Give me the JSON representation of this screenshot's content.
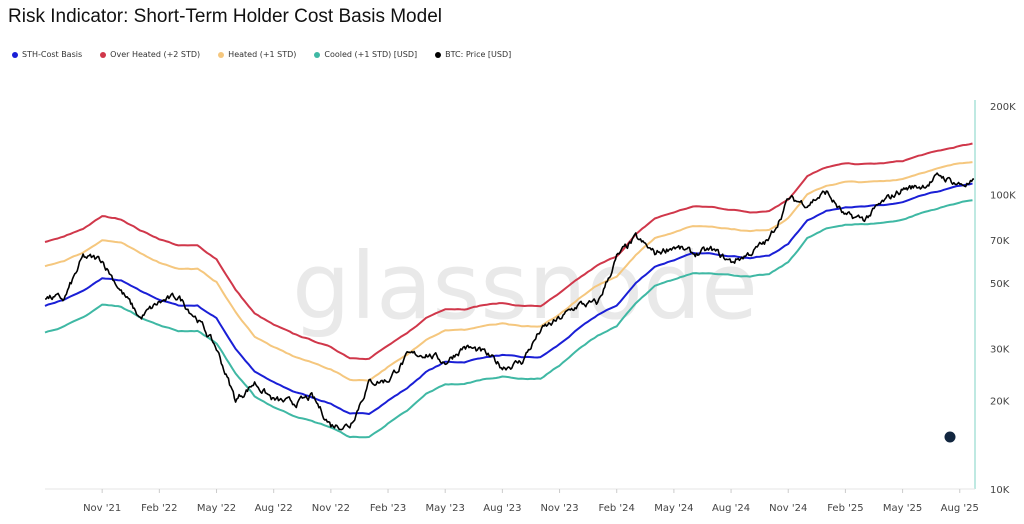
{
  "chart_data": {
    "type": "line",
    "title": "Risk Indicator: Short-Term Holder Cost Basis Model",
    "watermark": "glassnode",
    "y_scale": "log",
    "ylim": [
      10000,
      200000
    ],
    "y_ticks": [
      {
        "v": 200000,
        "label": "200K"
      },
      {
        "v": 100000,
        "label": "100K"
      },
      {
        "v": 70000,
        "label": "70K"
      },
      {
        "v": 50000,
        "label": "50K"
      },
      {
        "v": 30000,
        "label": "30K"
      },
      {
        "v": 20000,
        "label": "20K"
      },
      {
        "v": 10000,
        "label": "10K"
      }
    ],
    "x_unit": "month index (0 = Aug 2021)",
    "xlim": [
      0,
      48.8
    ],
    "x_ticks": [
      {
        "v": 3,
        "label": "Nov '21"
      },
      {
        "v": 6,
        "label": "Feb '22"
      },
      {
        "v": 9,
        "label": "May '22"
      },
      {
        "v": 12,
        "label": "Aug '22"
      },
      {
        "v": 15,
        "label": "Nov '22"
      },
      {
        "v": 18,
        "label": "Feb '23"
      },
      {
        "v": 21,
        "label": "May '23"
      },
      {
        "v": 24,
        "label": "Aug '23"
      },
      {
        "v": 27,
        "label": "Nov '23"
      },
      {
        "v": 30,
        "label": "Feb '24"
      },
      {
        "v": 33,
        "label": "May '24"
      },
      {
        "v": 36,
        "label": "Aug '24"
      },
      {
        "v": 39,
        "label": "Nov '24"
      },
      {
        "v": 42,
        "label": "Feb '25"
      },
      {
        "v": 45,
        "label": "May '25"
      },
      {
        "v": 48,
        "label": "Aug '25"
      }
    ],
    "legend_position": "top-left",
    "series": [
      {
        "name": "STH-Cost Basis",
        "color": "#1a1fd6",
        "width": 2,
        "values_k": [
          42,
          44,
          47,
          52,
          51,
          47,
          44,
          42,
          42,
          38,
          30,
          25,
          23,
          21.5,
          20.5,
          19.5,
          18,
          18,
          20,
          22,
          25,
          27,
          27,
          28,
          28.5,
          28,
          28,
          31,
          35,
          39,
          42,
          50,
          57,
          60,
          63,
          63,
          62,
          61,
          62,
          68,
          82,
          88,
          91,
          91,
          92,
          94,
          99,
          103,
          107,
          110
        ]
      },
      {
        "name": "Over Heated (+2 STD)",
        "color": "#d0374a",
        "width": 2,
        "values_k": [
          68.9,
          71.9,
          76.6,
          84.4,
          82.5,
          75.7,
          70.7,
          67.2,
          67.0,
          60.4,
          47.5,
          39.4,
          36.1,
          33.7,
          32.0,
          30.3,
          27.9,
          27.8,
          30.7,
          33.7,
          38.1,
          41.0,
          40.9,
          42.2,
          42.8,
          41.9,
          41.8,
          46.1,
          51.8,
          57.5,
          61.7,
          73.1,
          83.0,
          87.1,
          91.1,
          90.7,
          88.9,
          87.2,
          88.2,
          96.4,
          115.7,
          123.7,
          127.4,
          126.9,
          127.8,
          130.0,
          136.3,
          141.2,
          146.2,
          149.6
        ]
      },
      {
        "name": "Heated (+1 STD)",
        "color": "#f5c77e",
        "width": 2,
        "values_k": [
          57.1,
          59.7,
          63.6,
          70.2,
          68.6,
          63.1,
          58.9,
          56.1,
          55.9,
          50.5,
          39.8,
          33.0,
          30.3,
          28.3,
          26.9,
          25.5,
          23.5,
          23.4,
          26.0,
          28.5,
          32.3,
          34.7,
          34.7,
          35.8,
          36.4,
          35.6,
          35.6,
          39.2,
          44.2,
          49.1,
          52.8,
          62.6,
          71.2,
          74.7,
          78.2,
          78.0,
          76.6,
          75.1,
          76.1,
          83.3,
          100.1,
          107.2,
          110.5,
          110.2,
          111.0,
          113.2,
          118.8,
          123.3,
          127.7,
          130.9
        ]
      },
      {
        "name": "Cooled (+1 STD) [USD]",
        "color": "#3fb8a4",
        "width": 2,
        "values_k": [
          34.0,
          35.7,
          38.2,
          42.3,
          41.6,
          38.4,
          36.0,
          34.4,
          34.5,
          31.3,
          24.7,
          20.6,
          19.0,
          17.8,
          17.0,
          16.2,
          15.0,
          15.0,
          16.7,
          18.4,
          21.0,
          22.7,
          22.7,
          23.6,
          24.1,
          23.7,
          23.7,
          26.3,
          29.8,
          33.2,
          35.8,
          42.7,
          48.8,
          51.4,
          54.1,
          54.2,
          53.4,
          52.6,
          53.6,
          58.9,
          71.1,
          76.5,
          79.2,
          79.3,
          80.3,
          82.2,
          86.7,
          90.3,
          94.1,
          96.8
        ]
      },
      {
        "name": "BTC: Price [USD]",
        "color": "#000000",
        "width": 1.6,
        "values_k": [
          45,
          44,
          61,
          60,
          47,
          38,
          43,
          45,
          38,
          30,
          20,
          23,
          20,
          19.5,
          20.5,
          16.5,
          16.5,
          23,
          23.5,
          28,
          29,
          27,
          30.5,
          29,
          26,
          27,
          34.5,
          37.7,
          42.3,
          42.5,
          61,
          71,
          63,
          67,
          62.7,
          64.6,
          59,
          63.3,
          70,
          96.4,
          93.4,
          102,
          84,
          82.5,
          94,
          104.6,
          107,
          115.7,
          108.2,
          110
        ]
      }
    ]
  }
}
